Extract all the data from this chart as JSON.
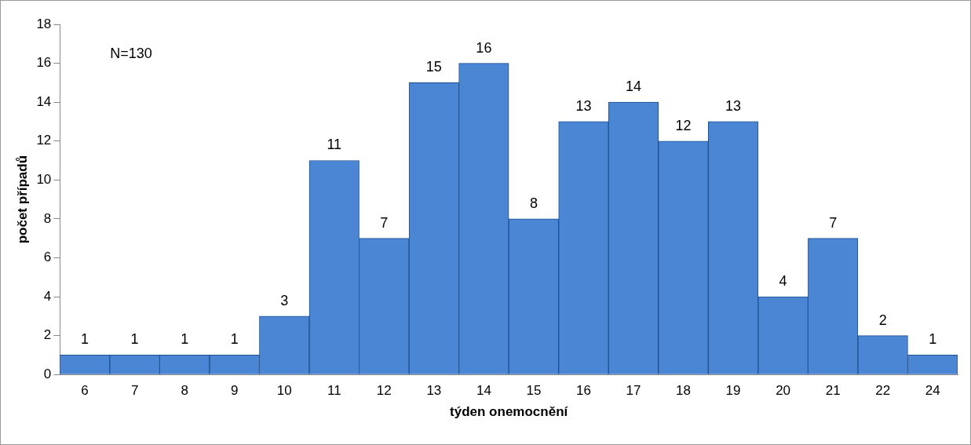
{
  "chart_data": {
    "type": "bar",
    "xlabel": "týden onemocnění",
    "ylabel": "počet případů",
    "categories": [
      "6",
      "7",
      "8",
      "9",
      "10",
      "11",
      "12",
      "13",
      "14",
      "15",
      "16",
      "17",
      "18",
      "19",
      "20",
      "21",
      "22",
      "24"
    ],
    "values": [
      1,
      1,
      1,
      1,
      3,
      11,
      7,
      15,
      16,
      8,
      13,
      14,
      12,
      13,
      4,
      7,
      2,
      1
    ],
    "color": "#4a86d4",
    "ylim": [
      0,
      18
    ],
    "yticks": [
      0,
      2,
      4,
      6,
      8,
      10,
      12,
      14,
      16,
      18
    ],
    "grid": false,
    "legend": false,
    "data_labels": true,
    "annotations": [
      "N=130"
    ]
  }
}
